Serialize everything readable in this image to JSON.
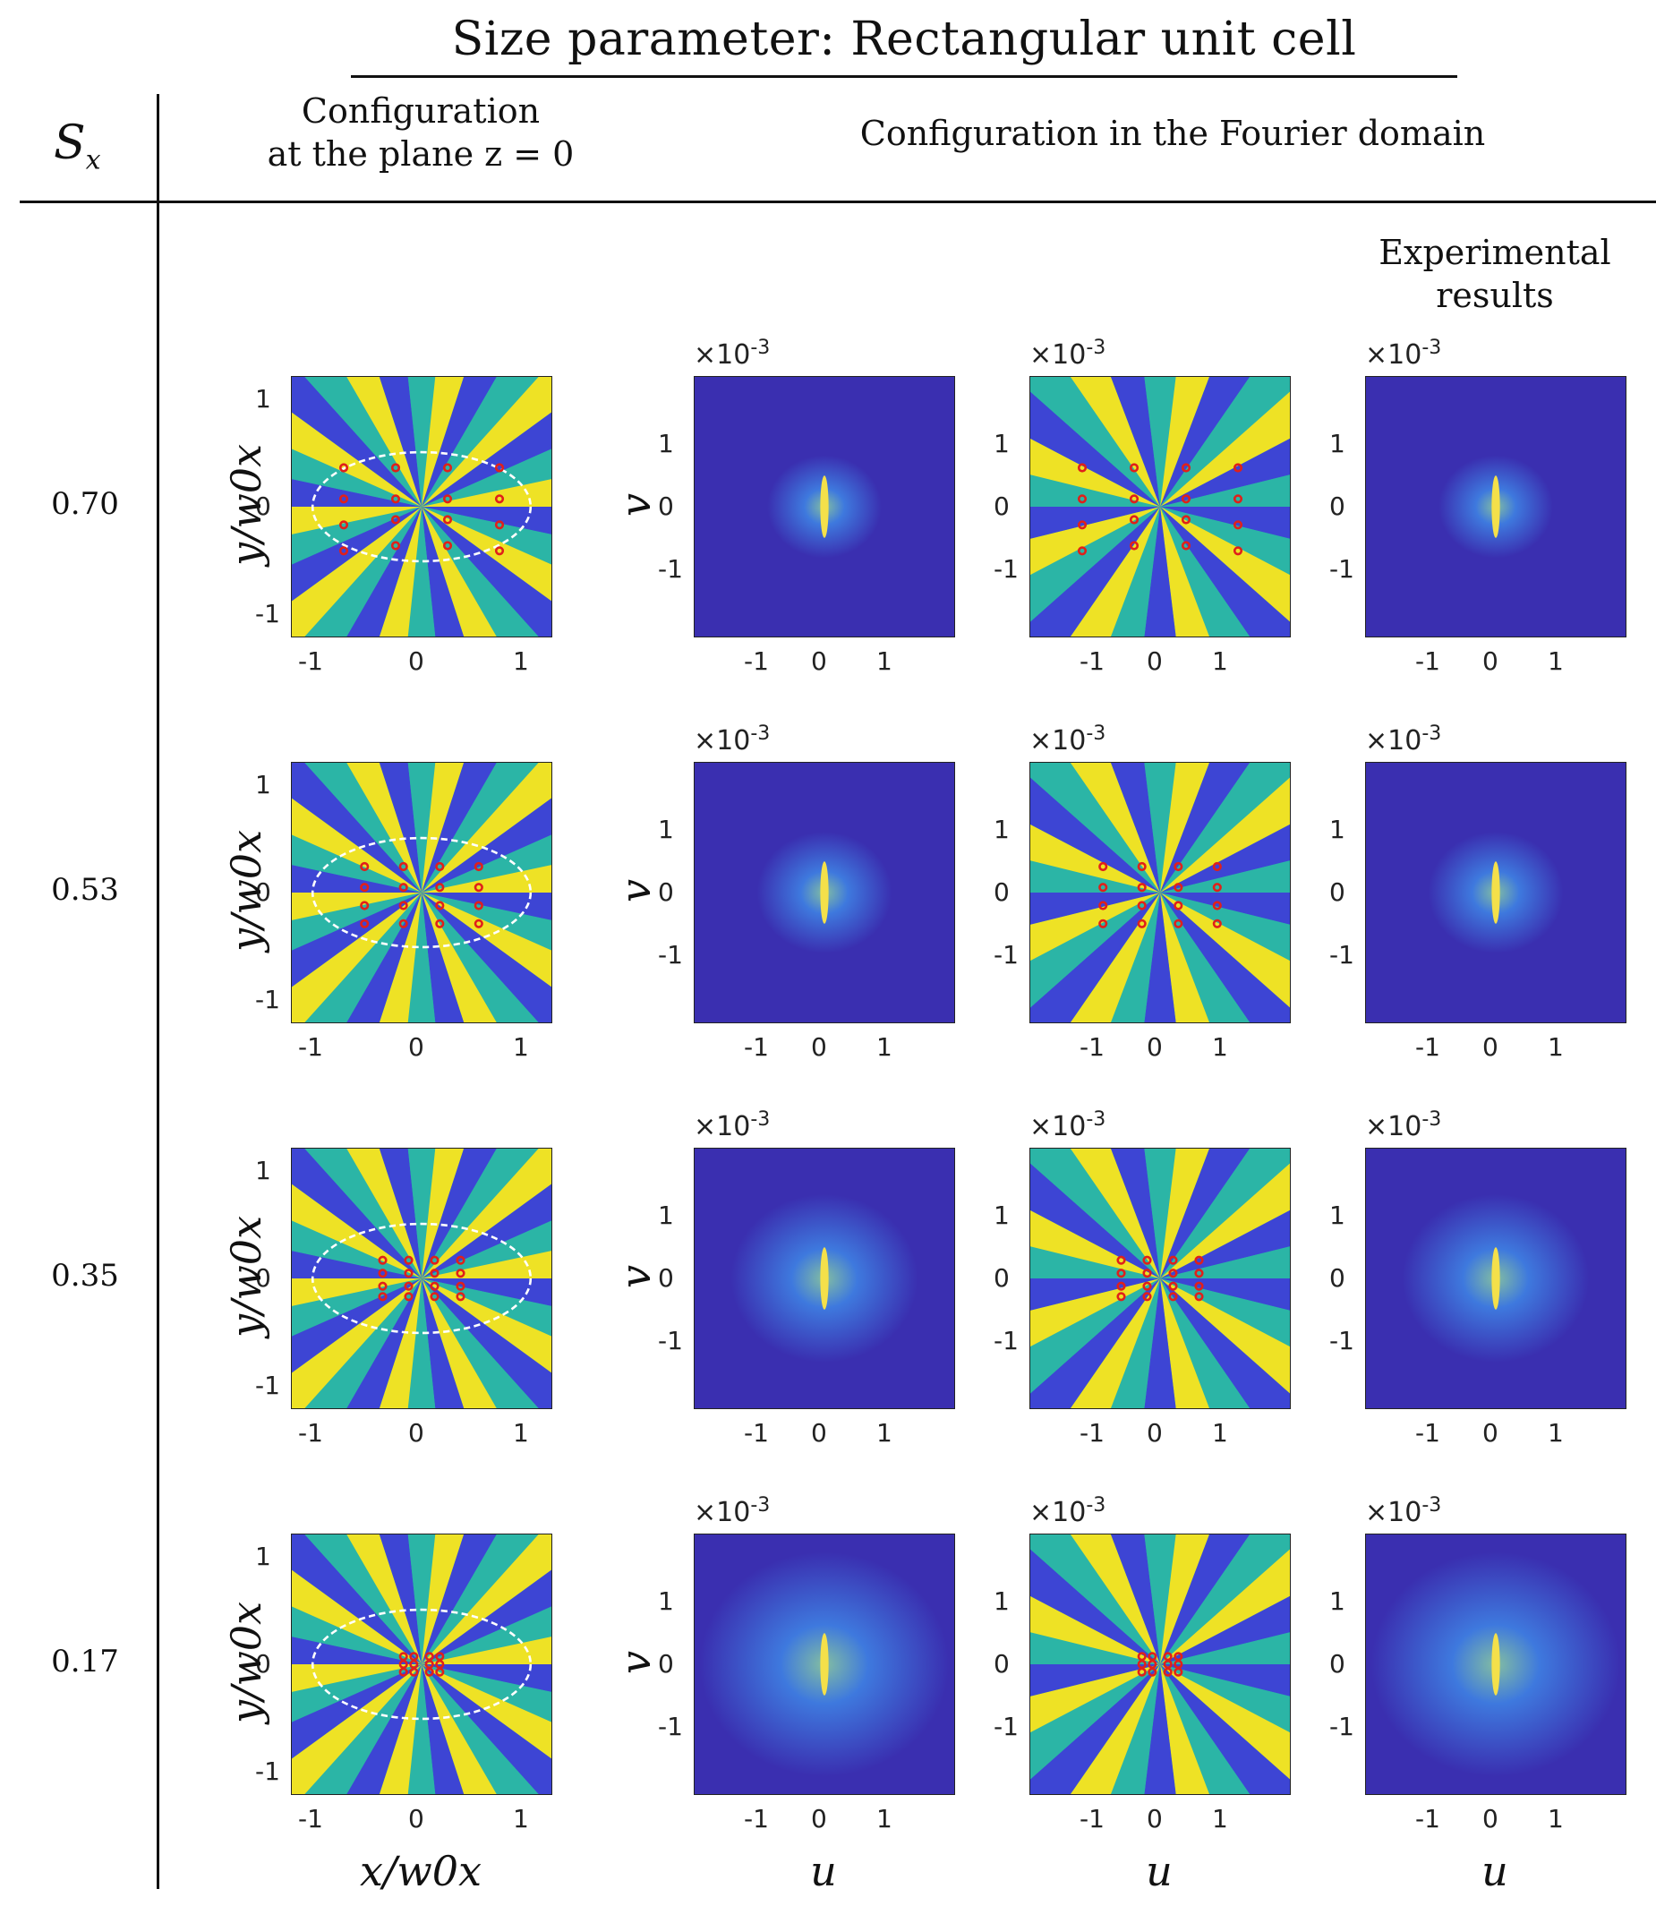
{
  "figure": {
    "title": "Size parameter: Rectangular unit cell",
    "row_header": "S",
    "row_header_sub": "x",
    "col_config_line1": "Configuration",
    "col_config_line2": "at the plane z = 0",
    "col_fourier": "Configuration in the Fourier domain",
    "col_exp_line1": "Experimental",
    "col_exp_line2": "results",
    "exponent_label": "×10",
    "exponent_value": "-3",
    "ylabel_config": "y/w0x",
    "xlabel_config": "x/w0x",
    "ylabel_fourier": "v",
    "xlabel_fourier": "u",
    "ticks": [
      "-1",
      "0",
      "1"
    ]
  },
  "rows": [
    {
      "sx": "0.70"
    },
    {
      "sx": "0.53"
    },
    {
      "sx": "0.35"
    },
    {
      "sx": "0.17"
    }
  ],
  "colors": {
    "phase_yellow": "#f9e51e",
    "phase_teal": "#2bb5a5",
    "phase_blue": "#3e3fd6",
    "intensity_bg": "#3a2fb0",
    "vortex_marker": "#e0201a",
    "ellipse": "#ffffff"
  }
}
